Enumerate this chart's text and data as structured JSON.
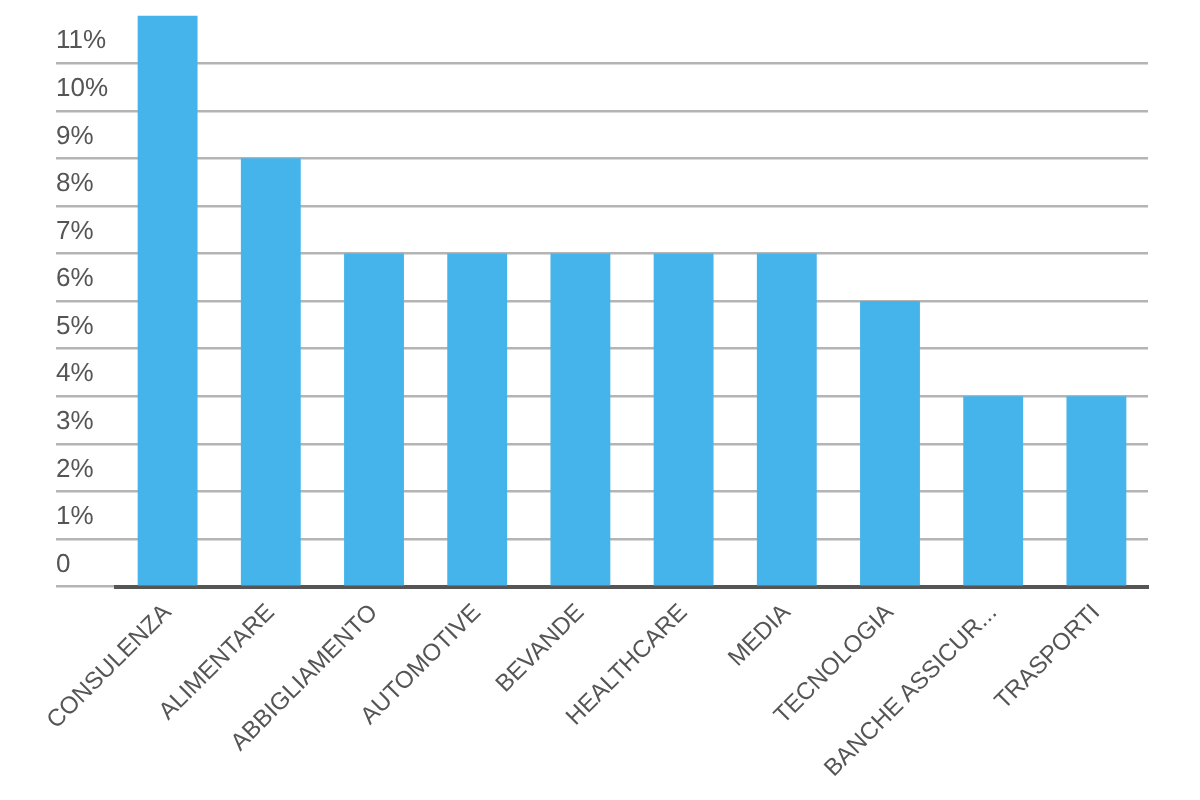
{
  "chart_data": {
    "type": "bar",
    "categories": [
      "CONSULENZA",
      "ALIMENTARE",
      "ABBIGLIAMENTO",
      "AUTOMOTIVE",
      "BEVANDE",
      "HEALTHCARE",
      "MEDIA",
      "TECNOLOGIA",
      "BANCHE ASSICUR...",
      "TRASPORTI"
    ],
    "values": [
      12,
      9,
      7,
      7,
      7,
      7,
      7,
      6,
      4,
      4
    ],
    "color": "#44b4ea",
    "ylim": [
      0,
      12
    ],
    "yticks": [
      0,
      {
        "value": 1,
        "label": "1%"
      },
      {
        "value": 2,
        "label": "2%"
      },
      {
        "value": 3,
        "label": "3%"
      },
      {
        "value": 4,
        "label": "4%"
      },
      {
        "value": 5,
        "label": "5%"
      },
      {
        "value": 6,
        "label": "6%"
      },
      {
        "value": 7,
        "label": "7%"
      },
      {
        "value": 8,
        "label": "8%"
      },
      {
        "value": 9,
        "label": "9%"
      },
      {
        "value": 10,
        "label": "10%"
      },
      {
        "value": 11,
        "label": "11%"
      }
    ],
    "grid": "y"
  }
}
